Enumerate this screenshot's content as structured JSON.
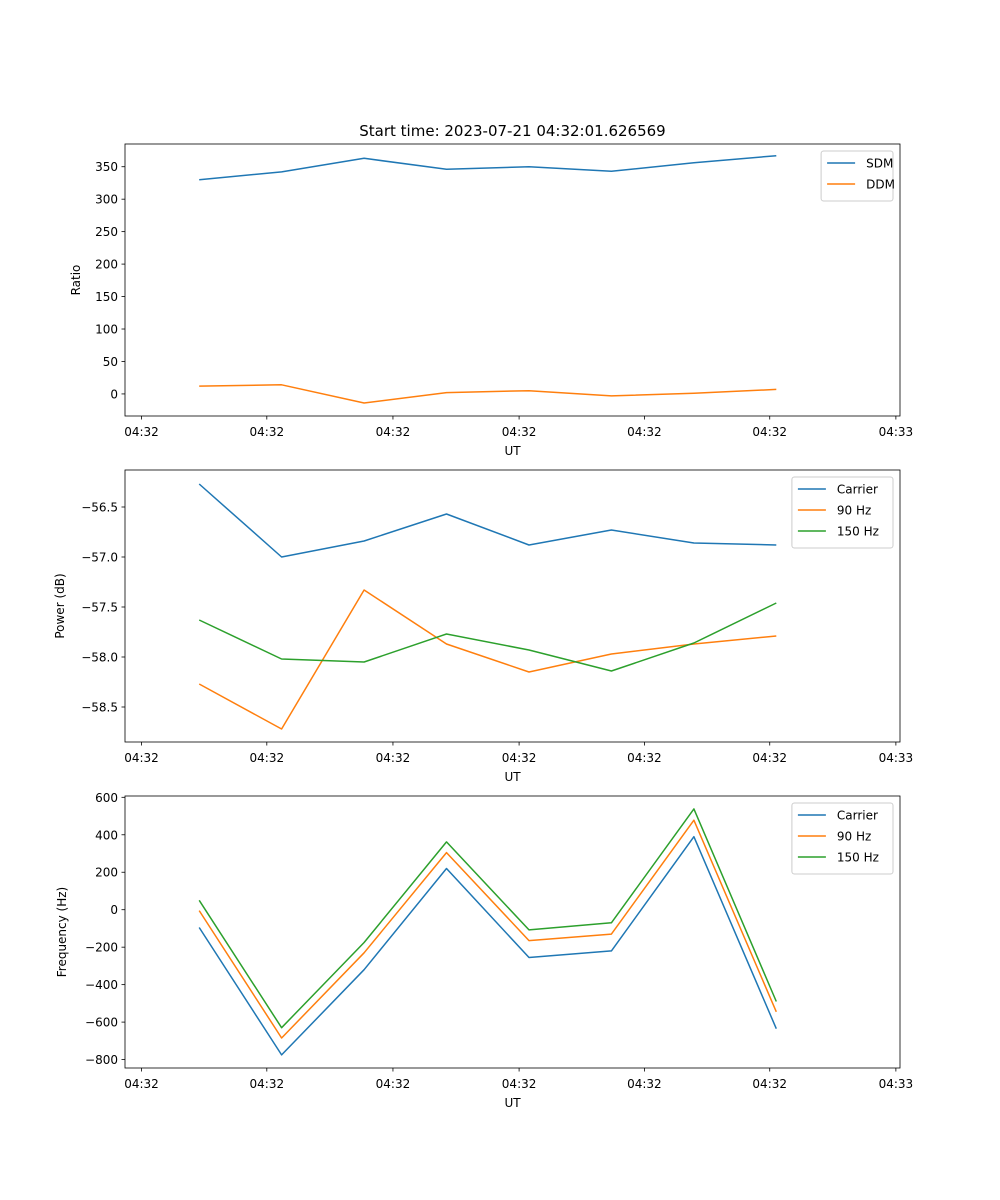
{
  "figure": {
    "title": "Start time: 2023-07-21 04:32:01.626569"
  },
  "colors": {
    "blue": "#1f77b4",
    "orange": "#ff7f0e",
    "green": "#2ca02c"
  },
  "chart_data": [
    {
      "type": "line",
      "title": "Start time: 2023-07-21 04:32:01.626569",
      "xlabel": "UT",
      "ylabel": "Ratio",
      "x": [
        1,
        2,
        3,
        4,
        5,
        6,
        7,
        8
      ],
      "x_ticks": [
        {
          "x": 0.3,
          "label": "04:32"
        },
        {
          "x": 1.82,
          "label": "04:32"
        },
        {
          "x": 3.35,
          "label": "04:32"
        },
        {
          "x": 4.88,
          "label": "04:32"
        },
        {
          "x": 6.4,
          "label": "04:32"
        },
        {
          "x": 7.92,
          "label": "04:32"
        },
        {
          "x": 9.45,
          "label": "04:33"
        }
      ],
      "xlim": [
        0.1,
        9.5
      ],
      "ylim": [
        -34,
        385
      ],
      "y_ticks": [
        0,
        50,
        100,
        150,
        200,
        250,
        300,
        350
      ],
      "y_tick_labels": [
        "0",
        "50",
        "100",
        "150",
        "200",
        "250",
        "300",
        "350"
      ],
      "legend": "top-right",
      "series": [
        {
          "name": "SDM",
          "color": "#1f77b4",
          "values": [
            330,
            342,
            363,
            346,
            350,
            343,
            356,
            367
          ]
        },
        {
          "name": "DDM",
          "color": "#ff7f0e",
          "values": [
            12,
            14,
            -14,
            2,
            5,
            -3,
            1,
            7
          ]
        }
      ]
    },
    {
      "type": "line",
      "title": "",
      "xlabel": "UT",
      "ylabel": "Power (dB)",
      "x": [
        1,
        2,
        3,
        4,
        5,
        6,
        7,
        8
      ],
      "x_ticks": [
        {
          "x": 0.3,
          "label": "04:32"
        },
        {
          "x": 1.82,
          "label": "04:32"
        },
        {
          "x": 3.35,
          "label": "04:32"
        },
        {
          "x": 4.88,
          "label": "04:32"
        },
        {
          "x": 6.4,
          "label": "04:32"
        },
        {
          "x": 7.92,
          "label": "04:32"
        },
        {
          "x": 9.45,
          "label": "04:33"
        }
      ],
      "xlim": [
        0.1,
        9.5
      ],
      "ylim": [
        -58.85,
        -56.13
      ],
      "y_ticks": [
        -58.5,
        -58.0,
        -57.5,
        -57.0,
        -56.5
      ],
      "y_tick_labels": [
        "−58.5",
        "−58.0",
        "−57.5",
        "−57.0",
        "−56.5"
      ],
      "legend": "top-right",
      "series": [
        {
          "name": "Carrier",
          "color": "#1f77b4",
          "values": [
            -56.27,
            -57.0,
            -56.84,
            -56.57,
            -56.88,
            -56.73,
            -56.86,
            -56.88
          ]
        },
        {
          "name": "90 Hz",
          "color": "#ff7f0e",
          "values": [
            -58.27,
            -58.72,
            -57.33,
            -57.87,
            -58.15,
            -57.97,
            -57.87,
            -57.79
          ]
        },
        {
          "name": "150 Hz",
          "color": "#2ca02c",
          "values": [
            -57.63,
            -58.02,
            -58.05,
            -57.77,
            -57.93,
            -58.14,
            -57.86,
            -57.46
          ]
        }
      ]
    },
    {
      "type": "line",
      "title": "",
      "xlabel": "UT",
      "ylabel": "Frequency (Hz)",
      "x": [
        1,
        2,
        3,
        4,
        5,
        6,
        7,
        8
      ],
      "x_ticks": [
        {
          "x": 0.3,
          "label": "04:32"
        },
        {
          "x": 1.82,
          "label": "04:32"
        },
        {
          "x": 3.35,
          "label": "04:32"
        },
        {
          "x": 4.88,
          "label": "04:32"
        },
        {
          "x": 6.4,
          "label": "04:32"
        },
        {
          "x": 7.92,
          "label": "04:32"
        },
        {
          "x": 9.45,
          "label": "04:33"
        }
      ],
      "xlim": [
        0.1,
        9.5
      ],
      "ylim": [
        -845,
        607
      ],
      "y_ticks": [
        -800,
        -600,
        -400,
        -200,
        0,
        200,
        400,
        600
      ],
      "y_tick_labels": [
        "−800",
        "−600",
        "−400",
        "−200",
        "0",
        "200",
        "400",
        "600"
      ],
      "legend": "top-right",
      "series": [
        {
          "name": "Carrier",
          "color": "#1f77b4",
          "values": [
            -95,
            -775,
            -320,
            220,
            -255,
            -220,
            390,
            -635
          ]
        },
        {
          "name": "90 Hz",
          "color": "#ff7f0e",
          "values": [
            -5,
            -685,
            -230,
            305,
            -165,
            -130,
            478,
            -545
          ]
        },
        {
          "name": "150 Hz",
          "color": "#2ca02c",
          "values": [
            50,
            -630,
            -175,
            362,
            -108,
            -70,
            538,
            -490
          ]
        }
      ]
    }
  ]
}
